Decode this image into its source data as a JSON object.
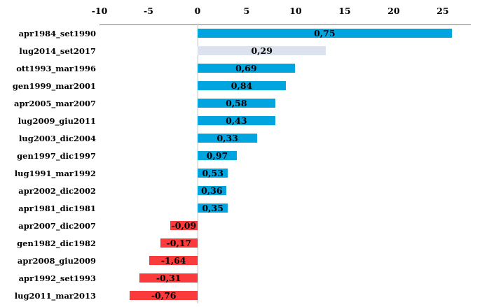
{
  "chart_data": {
    "type": "bar",
    "orientation": "horizontal",
    "title": "",
    "xlabel": "",
    "ylabel": "",
    "grid": false,
    "legend": null,
    "axis_position": "top",
    "x_ticks": [
      -10,
      -5,
      0,
      5,
      10,
      15,
      20,
      25
    ],
    "xlim": [
      -10,
      27.9
    ],
    "categories": [
      "apr1984_set1990",
      "lug2014_set2017",
      "ott1993_mar1996",
      "gen1999_mar2001",
      "apr2005_mar2007",
      "lug2009_giu2011",
      "lug2003_dic2004",
      "gen1997_dic1997",
      "lug1991_mar1992",
      "apr2002_dic2002",
      "apr1981_dic1981",
      "apr2007_dic2007",
      "gen1982_dic1982",
      "apr2008_giu2009",
      "apr1992_set1993",
      "lug2011_mar2013"
    ],
    "bar_lengths": [
      25.9,
      13.1,
      9.9,
      9.0,
      7.9,
      7.9,
      6.1,
      4.0,
      3.1,
      2.9,
      3.1,
      -2.8,
      -3.8,
      -4.9,
      -5.9,
      -6.9
    ],
    "bar_labels": [
      "0,75",
      "0,29",
      "0,69",
      "0,84",
      "0,58",
      "0,43",
      "0,33",
      "0,97",
      "0,53",
      "0,36",
      "0,35",
      "-0,09",
      "-0,17",
      "-1,64",
      "-0,31",
      "-0,76"
    ],
    "bar_styles": [
      "blue",
      "light",
      "blue",
      "blue",
      "blue",
      "blue",
      "blue",
      "blue",
      "blue",
      "blue",
      "blue",
      "red",
      "red",
      "red",
      "red",
      "red"
    ],
    "colors": {
      "blue": "#00a5e0",
      "light": "#dce3ef",
      "red": "#fb3b3b",
      "axis_line": "#7f7f7f",
      "zero_line": "#bfbfbf",
      "text": "#000000"
    }
  }
}
